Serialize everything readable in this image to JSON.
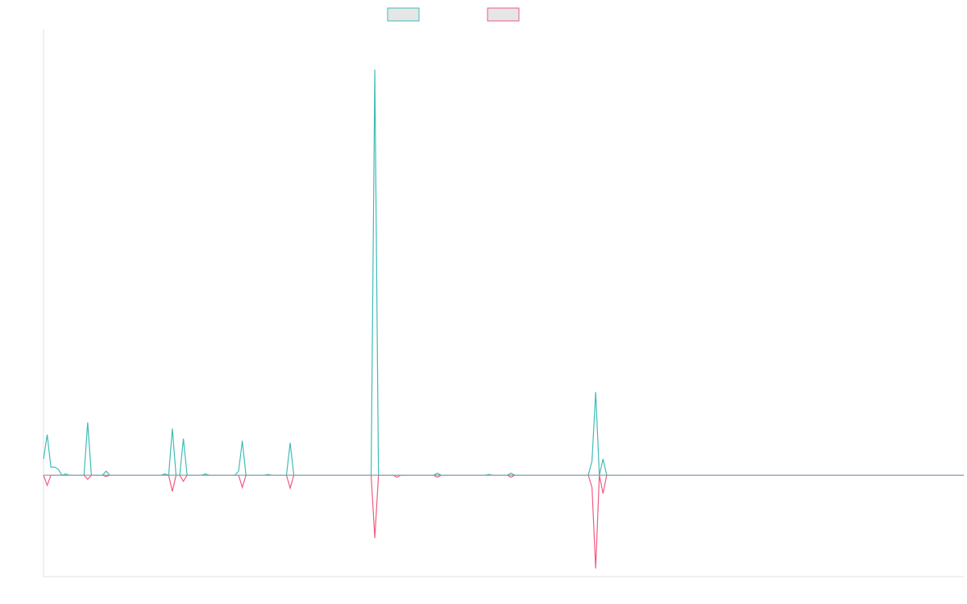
{
  "chart_data": {
    "type": "line",
    "title": "",
    "xlabel": "",
    "ylabel": "",
    "grid": false,
    "legend_placement": "top-center",
    "x_range": [
      0,
      250
    ],
    "ylim": [
      -25,
      110
    ],
    "series": [
      {
        "color": "#3fbcb6",
        "fill": "#e6e6e6",
        "points": [
          [
            0,
            4
          ],
          [
            1,
            10
          ],
          [
            2,
            2
          ],
          [
            3,
            2
          ],
          [
            4,
            1.5
          ],
          [
            5,
            0
          ],
          [
            6,
            0.3
          ],
          [
            7,
            0
          ],
          [
            11,
            0
          ],
          [
            12,
            13
          ],
          [
            13,
            0
          ],
          [
            16,
            0
          ],
          [
            17,
            1
          ],
          [
            18,
            0
          ],
          [
            32,
            0
          ],
          [
            33,
            0.3
          ],
          [
            34,
            0
          ],
          [
            35,
            11.5
          ],
          [
            36,
            0
          ],
          [
            37,
            0
          ],
          [
            38,
            9
          ],
          [
            39,
            0
          ],
          [
            43,
            0
          ],
          [
            44,
            0.3
          ],
          [
            45,
            0
          ],
          [
            52,
            0
          ],
          [
            53,
            1
          ],
          [
            54,
            8.5
          ],
          [
            55,
            0
          ],
          [
            60,
            0
          ],
          [
            61,
            0.2
          ],
          [
            62,
            0
          ],
          [
            66,
            0
          ],
          [
            67,
            8
          ],
          [
            68,
            0
          ],
          [
            89,
            0
          ],
          [
            90,
            100
          ],
          [
            91,
            0
          ],
          [
            92,
            0
          ],
          [
            106,
            0
          ],
          [
            107,
            0.5
          ],
          [
            108,
            0
          ],
          [
            120,
            0
          ],
          [
            121,
            0.2
          ],
          [
            122,
            0
          ],
          [
            126,
            0
          ],
          [
            127,
            0.5
          ],
          [
            128,
            0
          ],
          [
            148,
            0
          ],
          [
            149,
            3.5
          ],
          [
            150,
            20.5
          ],
          [
            151,
            0
          ],
          [
            152,
            4
          ],
          [
            153,
            0
          ],
          [
            250,
            0
          ]
        ]
      },
      {
        "color": "#ef5b80",
        "fill": "#e6e6e6",
        "points": [
          [
            0,
            0
          ],
          [
            1,
            -2.5
          ],
          [
            2,
            0
          ],
          [
            5,
            0
          ],
          [
            11,
            0
          ],
          [
            12,
            -1
          ],
          [
            13,
            0
          ],
          [
            16,
            0
          ],
          [
            17,
            -0.3
          ],
          [
            18,
            0
          ],
          [
            34,
            0
          ],
          [
            35,
            -4
          ],
          [
            36,
            0
          ],
          [
            37,
            0
          ],
          [
            38,
            -1.5
          ],
          [
            39,
            0
          ],
          [
            53,
            0
          ],
          [
            54,
            -3
          ],
          [
            55,
            0
          ],
          [
            66,
            0
          ],
          [
            67,
            -3.2
          ],
          [
            68,
            0
          ],
          [
            89,
            0
          ],
          [
            90,
            -15.5
          ],
          [
            91,
            0
          ],
          [
            95,
            0
          ],
          [
            96,
            -0.5
          ],
          [
            97,
            0
          ],
          [
            106,
            0
          ],
          [
            107,
            -0.5
          ],
          [
            108,
            0
          ],
          [
            126,
            0
          ],
          [
            127,
            -0.5
          ],
          [
            128,
            0
          ],
          [
            148,
            0
          ],
          [
            149,
            -3
          ],
          [
            150,
            -23
          ],
          [
            151,
            0
          ],
          [
            152,
            -4.5
          ],
          [
            153,
            0
          ],
          [
            250,
            0
          ]
        ]
      }
    ]
  }
}
